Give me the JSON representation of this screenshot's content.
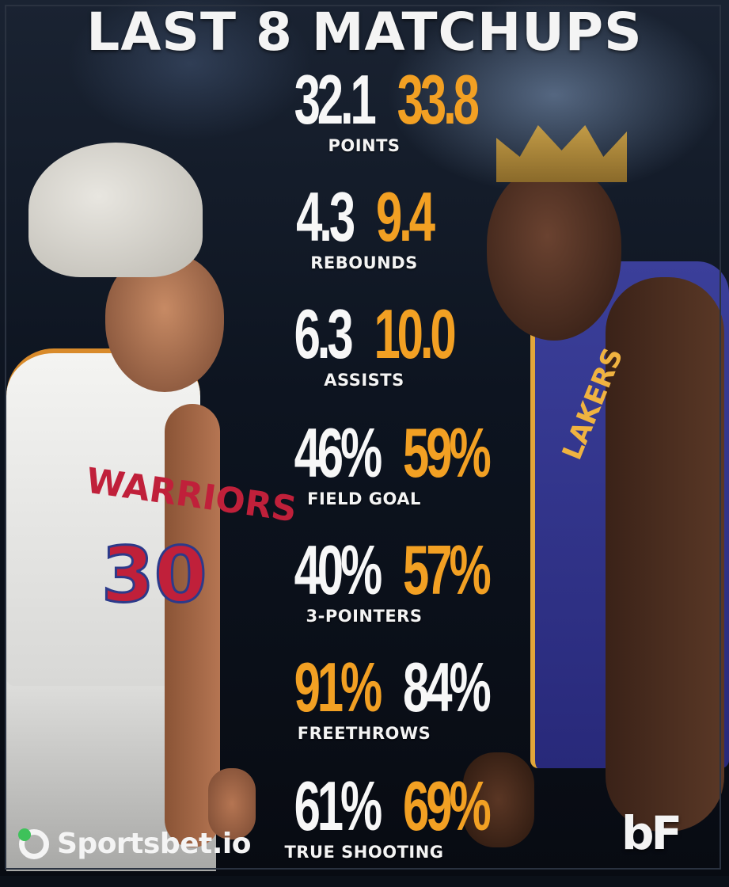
{
  "title": "LAST 8 MATCHUPS",
  "colors": {
    "highlight": "#f2a023",
    "default": "#f7f7f7"
  },
  "stats": [
    {
      "label": "POINTS",
      "left": "32.1",
      "right": "33.8",
      "left_color": "white",
      "right_color": "orange"
    },
    {
      "label": "REBOUNDS",
      "left": "4.3",
      "right": "9.4",
      "left_color": "white",
      "right_color": "orange"
    },
    {
      "label": "ASSISTS",
      "left": "6.3",
      "right": "10.0",
      "left_color": "white",
      "right_color": "orange"
    },
    {
      "label": "FIELD GOAL",
      "left": "46%",
      "right": "59%",
      "left_color": "white",
      "right_color": "orange"
    },
    {
      "label": "3-POINTERS",
      "left": "40%",
      "right": "57%",
      "left_color": "white",
      "right_color": "orange"
    },
    {
      "label": "FREETHROWS",
      "left": "91%",
      "right": "84%",
      "left_color": "orange",
      "right_color": "white"
    },
    {
      "label": "TRUE SHOOTING",
      "left": "61%",
      "right": "69%",
      "left_color": "white",
      "right_color": "orange"
    }
  ],
  "players": {
    "left": {
      "jersey_text": "WARRIORS",
      "jersey_number": "30"
    },
    "right": {
      "jersey_text": "LAKERS"
    }
  },
  "branding": {
    "sportsbet": "Sportsbet.io",
    "mark": "bF"
  }
}
